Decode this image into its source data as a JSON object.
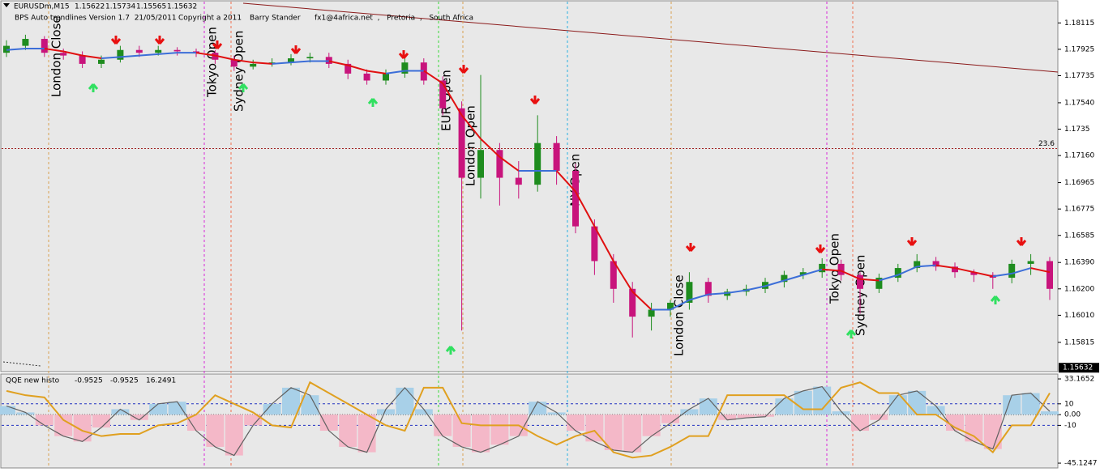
{
  "chart_data": [
    {
      "type": "candlestick",
      "title": "EURUSDm,M15",
      "header_values": [
        1.15622,
        1.15734,
        1.15565,
        1.15632
      ],
      "subtitle": "BPS Auto trendlines Version 1.7  21/05/2011",
      "notes": [
        "Copyright a 2011",
        "Barry Stander",
        "fx1@4africa.net  ,   Pretoria  ,   South Africa"
      ],
      "open": [
        1.179,
        1.1795,
        1.18,
        1.179,
        1.1788,
        1.1782,
        1.1785,
        1.1792,
        1.179,
        1.1792,
        1.1791,
        1.179,
        1.1785,
        1.178,
        1.1782,
        1.1783,
        1.1786,
        1.1787,
        1.1782,
        1.1775,
        1.177,
        1.1775,
        1.1783,
        1.177,
        1.175,
        1.17,
        1.172,
        1.17,
        1.1695,
        1.1725,
        1.1705,
        1.1665,
        1.164,
        1.162,
        1.16,
        1.1605,
        1.161,
        1.1625,
        1.1615,
        1.1618,
        1.162,
        1.1625,
        1.163,
        1.1632,
        1.1638,
        1.163,
        1.162,
        1.1628,
        1.1635,
        1.164,
        1.1636,
        1.1632,
        1.163,
        1.1628,
        1.1638,
        1.164
      ],
      "high": [
        1.1799,
        1.1803,
        1.1802,
        1.1793,
        1.1791,
        1.1788,
        1.1795,
        1.1795,
        1.1795,
        1.1794,
        1.1793,
        1.1792,
        1.1788,
        1.1785,
        1.1786,
        1.1789,
        1.179,
        1.179,
        1.1785,
        1.1778,
        1.1778,
        1.1787,
        1.1786,
        1.1773,
        1.1755,
        1.1774,
        1.1725,
        1.1712,
        1.1745,
        1.173,
        1.171,
        1.167,
        1.1645,
        1.1625,
        1.161,
        1.1612,
        1.1632,
        1.1628,
        1.162,
        1.1623,
        1.1628,
        1.1633,
        1.1635,
        1.1642,
        1.1641,
        1.1632,
        1.1631,
        1.1638,
        1.1645,
        1.1643,
        1.1639,
        1.1634,
        1.1632,
        1.1641,
        1.1645,
        1.1643
      ],
      "low": [
        1.1787,
        1.1792,
        1.1787,
        1.1785,
        1.1779,
        1.1779,
        1.1783,
        1.1787,
        1.1788,
        1.1788,
        1.1787,
        1.1782,
        1.1777,
        1.1778,
        1.178,
        1.1781,
        1.1783,
        1.1779,
        1.1771,
        1.1767,
        1.1767,
        1.1772,
        1.1767,
        1.1745,
        1.159,
        1.1685,
        1.168,
        1.1685,
        1.169,
        1.1695,
        1.166,
        1.163,
        1.161,
        1.1585,
        1.159,
        1.16,
        1.1605,
        1.161,
        1.1612,
        1.1615,
        1.1617,
        1.1621,
        1.1627,
        1.1628,
        1.1626,
        1.1602,
        1.1617,
        1.1625,
        1.1632,
        1.1633,
        1.1628,
        1.1625,
        1.162,
        1.1624,
        1.163,
        1.1612
      ],
      "close": [
        1.1795,
        1.18,
        1.179,
        1.1788,
        1.1782,
        1.1785,
        1.1792,
        1.179,
        1.1792,
        1.1791,
        1.179,
        1.1785,
        1.178,
        1.1782,
        1.1783,
        1.1786,
        1.1787,
        1.1782,
        1.1775,
        1.177,
        1.1775,
        1.1783,
        1.177,
        1.175,
        1.17,
        1.172,
        1.17,
        1.1695,
        1.1725,
        1.1705,
        1.1665,
        1.164,
        1.162,
        1.16,
        1.1605,
        1.161,
        1.1625,
        1.1615,
        1.1618,
        1.162,
        1.1625,
        1.163,
        1.1632,
        1.1638,
        1.163,
        1.162,
        1.1628,
        1.1635,
        1.164,
        1.1636,
        1.1632,
        1.163,
        1.1628,
        1.1638,
        1.164,
        1.162
      ],
      "ma": [
        1.1792,
        1.1793,
        1.1793,
        1.1791,
        1.1788,
        1.1786,
        1.1787,
        1.1788,
        1.1789,
        1.179,
        1.179,
        1.1788,
        1.1785,
        1.1783,
        1.1782,
        1.1783,
        1.1784,
        1.1784,
        1.1781,
        1.1777,
        1.1775,
        1.1777,
        1.1777,
        1.1768,
        1.1745,
        1.1728,
        1.1715,
        1.1705,
        1.1705,
        1.1705,
        1.169,
        1.1665,
        1.164,
        1.1618,
        1.1605,
        1.1605,
        1.1612,
        1.1616,
        1.1617,
        1.1619,
        1.1622,
        1.1626,
        1.163,
        1.1634,
        1.1633,
        1.1627,
        1.1626,
        1.163,
        1.1636,
        1.1637,
        1.1635,
        1.1632,
        1.1629,
        1.1631,
        1.1635,
        1.1632
      ],
      "up_color": "#1e8c1e",
      "down_color": "#c8147c",
      "ma_rising_color": "#3c6ed8",
      "ma_falling_color": "#e01010",
      "ylim": [
        1.1561,
        1.1821
      ],
      "yticks": [
        1.18115,
        1.17925,
        1.17735,
        {
          "value": 1.1754,
          "label": "1.17540"
        },
        1.1735,
        {
          "value": 1.1716,
          "label": "1.17160"
        },
        1.16965,
        1.16775,
        1.16585,
        {
          "value": 1.1639,
          "label": "1.16390"
        },
        {
          "value": 1.162,
          "label": "1.16200"
        },
        {
          "value": 1.1601,
          "label": "1.16010"
        },
        1.15815
      ],
      "current_price": 1.15632,
      "fib": {
        "label": 23.6,
        "price": 1.1721
      },
      "sessions": [
        {
          "label": "London Close",
          "color": "#d8a050"
        },
        {
          "label": "Tokyo Open",
          "color": "#d828d8"
        },
        {
          "label": "Sydney Open",
          "color": "#f07050"
        },
        {
          "label": "EUR Open",
          "color": "#38d838"
        },
        {
          "label": "London Open",
          "color": "#d8a050"
        },
        {
          "label": "NY Open",
          "color": "#28b0e0"
        },
        {
          "label": "London Close",
          "color": "#d8a050"
        },
        {
          "label": "Tokyo Open",
          "color": "#d828d8"
        },
        {
          "label": "Sydney Open",
          "color": "#f07050"
        }
      ]
    },
    {
      "type": "qqe",
      "title": "QQE new histo",
      "header_values": [
        -0.9525,
        -0.9525,
        16.2491
      ],
      "histogram": [
        8,
        2,
        -10,
        -20,
        -25,
        -12,
        5,
        -5,
        10,
        12,
        -15,
        -30,
        -38,
        -10,
        10,
        25,
        18,
        -15,
        -30,
        -35,
        5,
        25,
        5,
        -20,
        -30,
        -35,
        -28,
        -20,
        12,
        2,
        -15,
        -25,
        -33,
        -35,
        -20,
        -8,
        5,
        15,
        -5,
        -3,
        -2,
        15,
        22,
        26,
        3,
        -15,
        -5,
        18,
        22,
        8,
        -15,
        -25,
        -32,
        18,
        20,
        3
      ],
      "slow_line": [
        22,
        18,
        16,
        -5,
        -15,
        -20,
        -18,
        -18,
        -10,
        -8,
        0,
        18,
        10,
        2,
        -10,
        -12,
        30,
        20,
        10,
        0,
        -10,
        -15,
        25,
        25,
        -8,
        -10,
        -10,
        -10,
        -20,
        -28,
        -20,
        -15,
        -35,
        -40,
        -38,
        -30,
        -20,
        -20,
        18,
        18,
        18,
        18,
        5,
        5,
        25,
        30,
        20,
        20,
        0,
        0,
        -12,
        -20,
        -35,
        -10,
        -10,
        20
      ],
      "positive_color": "#a8d0e8",
      "negative_color": "#f4b8c8",
      "outline_color": "#606060",
      "slow_color": "#e0a020",
      "ylim": [
        -49.6,
        37.7
      ],
      "yticks": [
        33.1652,
        10,
        {
          "value": 0,
          "label": "0.00"
        },
        -10,
        -45.1247
      ]
    }
  ]
}
